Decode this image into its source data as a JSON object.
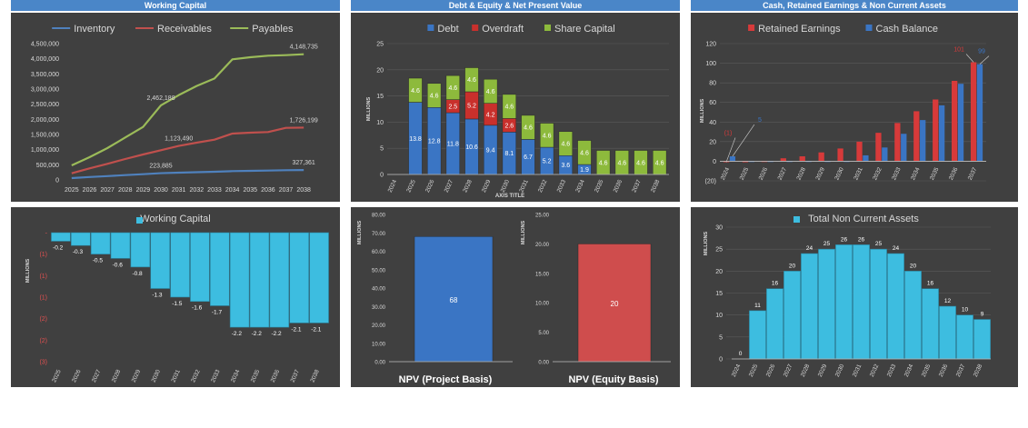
{
  "headers": {
    "working_capital": "Working Capital",
    "debt_equity_npv": "Debt & Equity & Net Present Value",
    "cash_retained": "Cash, Retained Earnings & Non Current Assets"
  },
  "colors": {
    "header_bg": "#4a86c8",
    "panel_bg": "#404040",
    "inventory": "#4f81bd",
    "receivables": "#c0504d",
    "payables": "#9bbb59",
    "debt": "#3a75c4",
    "overdraft": "#c9302c",
    "share_capital": "#8dba3c",
    "working_capital": "#3dbde0",
    "npv_project": "#3a75c4",
    "npv_equity": "#cf4d4d"
  },
  "chart_data": [
    {
      "id": "wc-lines",
      "type": "line",
      "title": "",
      "categories": [
        "2025",
        "2026",
        "2027",
        "2028",
        "2029",
        "2030",
        "2031",
        "2032",
        "2033",
        "2034",
        "2035",
        "2036",
        "2037",
        "2038"
      ],
      "ylim": [
        0,
        4500000
      ],
      "yticks": [
        0,
        500000,
        1000000,
        1500000,
        2000000,
        2500000,
        3000000,
        3500000,
        4000000,
        4500000
      ],
      "ytick_labels": [
        "0",
        "500,000",
        "1,000,000",
        "1,500,000",
        "2,000,000",
        "2,500,000",
        "3,000,000",
        "3,500,000",
        "4,000,000",
        "4,500,000"
      ],
      "legend_position": "top",
      "series": [
        {
          "name": "Inventory",
          "color": "#4f81bd",
          "values": [
            60000,
            95000,
            125000,
            160000,
            190000,
            223885,
            240000,
            255000,
            270000,
            290000,
            300000,
            310000,
            320000,
            327361
          ],
          "labels": [
            {
              "i": 5,
              "text": "223,885"
            },
            {
              "i": 13,
              "text": "327,361"
            }
          ]
        },
        {
          "name": "Receivables",
          "color": "#c0504d",
          "values": [
            220000,
            380000,
            530000,
            690000,
            840000,
            980000,
            1123490,
            1230000,
            1330000,
            1530000,
            1560000,
            1580000,
            1720000,
            1726199
          ],
          "labels": [
            {
              "i": 6,
              "text": "1,123,490"
            },
            {
              "i": 13,
              "text": "1,726,199"
            }
          ]
        },
        {
          "name": "Payables",
          "color": "#9bbb59",
          "values": [
            480000,
            750000,
            1050000,
            1400000,
            1750000,
            2462188,
            2800000,
            3100000,
            3350000,
            3980000,
            4050000,
            4100000,
            4120000,
            4148735
          ],
          "labels": [
            {
              "i": 5,
              "text": "2,462,188"
            },
            {
              "i": 13,
              "text": "4,148,735"
            }
          ]
        }
      ]
    },
    {
      "id": "debt-stack",
      "type": "bar",
      "stacked": true,
      "title": "",
      "ylabel": "MILLIONS",
      "xlabel": "AXIS TITLE",
      "categories": [
        "2024",
        "2025",
        "2026",
        "2027",
        "2028",
        "2029",
        "2030",
        "2031",
        "2032",
        "2033",
        "2034",
        "2035",
        "2036",
        "2037",
        "2038"
      ],
      "ylim": [
        0,
        25
      ],
      "yticks": [
        0,
        5,
        10,
        15,
        20,
        25
      ],
      "ytick_labels": [
        "0",
        "5",
        "10",
        "15",
        "20",
        "25"
      ],
      "legend_position": "top",
      "series": [
        {
          "name": "Debt",
          "color": "#3a75c4",
          "values": [
            0,
            13.8,
            12.8,
            11.8,
            10.6,
            9.4,
            8.1,
            6.7,
            5.2,
            3.6,
            1.9,
            0,
            0,
            0,
            0
          ],
          "labels": [
            "",
            "13.8",
            "12.8",
            "11.8",
            "10.6",
            "9.4",
            "8.1",
            "6.7",
            "5.2",
            "3.6",
            "1.9",
            "",
            "",
            "",
            ""
          ]
        },
        {
          "name": "Overdraft",
          "color": "#c9302c",
          "values": [
            0,
            0,
            0,
            2.5,
            5.2,
            4.2,
            2.6,
            0,
            0,
            0,
            0,
            0,
            0,
            0,
            0
          ],
          "labels": [
            "",
            "",
            "",
            "2.5",
            "5.2",
            "4.2",
            "2.6",
            "",
            "",
            "",
            "",
            "",
            "",
            "",
            ""
          ]
        },
        {
          "name": "Share Capital",
          "color": "#8dba3c",
          "values": [
            0,
            4.6,
            4.6,
            4.6,
            4.6,
            4.6,
            4.6,
            4.6,
            4.6,
            4.6,
            4.6,
            4.6,
            4.6,
            4.6,
            4.6
          ],
          "labels": [
            "",
            "4.6",
            "4.6",
            "4.6",
            "4.6",
            "4.6",
            "4.6",
            "4.6",
            "4.6",
            "4.6",
            "4.6",
            "4.6",
            "4.6",
            "4.6",
            "4.6"
          ]
        }
      ]
    },
    {
      "id": "cash-retained",
      "type": "bar",
      "title": "",
      "ylabel": "MILLIONS",
      "categories": [
        "2024",
        "2025",
        "2026",
        "2027",
        "2028",
        "2029",
        "2030",
        "2031",
        "2032",
        "2033",
        "2034",
        "2035",
        "2036",
        "2037"
      ],
      "ylim": [
        -20,
        120
      ],
      "yticks": [
        -20,
        0,
        20,
        40,
        60,
        80,
        100,
        120
      ],
      "ytick_labels": [
        "(20)",
        "0",
        "20",
        "40",
        "60",
        "80",
        "100",
        "120"
      ],
      "legend_position": "top",
      "series": [
        {
          "name": "Retained Earnings",
          "color": "#d73a3a",
          "values": [
            -1,
            -1,
            0,
            3,
            5,
            9,
            13,
            20,
            29,
            39,
            51,
            63,
            82,
            101
          ]
        },
        {
          "name": "Cash Balance",
          "color": "#3a75c4",
          "values": [
            5,
            0,
            0,
            0,
            0,
            0,
            0,
            6,
            14,
            28,
            42,
            57,
            79,
            99
          ]
        }
      ],
      "callouts": [
        {
          "series": 0,
          "i": 0,
          "text": "(1)",
          "color": "#d73a3a"
        },
        {
          "series": 1,
          "i": 0,
          "text": "5",
          "color": "#3a75c4"
        },
        {
          "series": 0,
          "i": 13,
          "text": "101",
          "color": "#d73a3a"
        },
        {
          "series": 1,
          "i": 13,
          "text": "99",
          "color": "#3a75c4"
        }
      ]
    },
    {
      "id": "working-capital",
      "type": "bar",
      "title": "Working Capital",
      "ylabel": "MILLIONS",
      "categories": [
        "2025",
        "2026",
        "2027",
        "2028",
        "2029",
        "2030",
        "2031",
        "2032",
        "2033",
        "2034",
        "2035",
        "2036",
        "2037",
        "2038"
      ],
      "ylim": [
        -3,
        0
      ],
      "yticks": [
        0,
        -0.5,
        -1,
        -1.5,
        -2,
        -2.5,
        -3
      ],
      "ytick_labels": [
        "-",
        "(1)",
        "(1)",
        "(1)",
        "(2)",
        "(2)",
        "(3)"
      ],
      "legend_position": "top",
      "series": [
        {
          "name": "Working Capital",
          "color": "#3dbde0",
          "values": [
            -0.2,
            -0.3,
            -0.5,
            -0.6,
            -0.8,
            -1.3,
            -1.5,
            -1.6,
            -1.7,
            -2.2,
            -2.2,
            -2.2,
            -2.1,
            -2.1
          ],
          "labels": [
            "-0.2",
            "-0.3",
            "-0.5",
            "-0.6",
            "-0.8",
            "-1.3",
            "-1.5",
            "-1.6",
            "-1.7",
            "-2.2",
            "-2.2",
            "-2.2",
            "-2.1",
            "-2.1"
          ]
        }
      ]
    },
    {
      "id": "npv-project",
      "type": "bar",
      "title": "",
      "ylabel": "MILLIONS",
      "categories": [
        "NPV (Project Basis)"
      ],
      "ylim": [
        0,
        80
      ],
      "yticks": [
        0,
        10,
        20,
        30,
        40,
        50,
        60,
        70,
        80
      ],
      "ytick_labels": [
        "0.00",
        "10.00",
        "20.00",
        "30.00",
        "40.00",
        "50.00",
        "60.00",
        "70.00",
        "80.00"
      ],
      "series": [
        {
          "color": "#3a75c4",
          "values": [
            68
          ],
          "labels": [
            "68"
          ]
        }
      ]
    },
    {
      "id": "npv-equity",
      "type": "bar",
      "title": "",
      "ylabel": "MILLIONS",
      "categories": [
        "NPV (Equity Basis)"
      ],
      "ylim": [
        0,
        25
      ],
      "yticks": [
        0,
        5,
        10,
        15,
        20,
        25
      ],
      "ytick_labels": [
        "0.00",
        "5.00",
        "10.00",
        "15.00",
        "20.00",
        "25.00"
      ],
      "series": [
        {
          "color": "#cf4d4d",
          "values": [
            20
          ],
          "labels": [
            "20"
          ]
        }
      ]
    },
    {
      "id": "nca",
      "type": "bar",
      "title": "Total Non Current Assets",
      "ylabel": "MILLIONS",
      "categories": [
        "2024",
        "2025",
        "2026",
        "2027",
        "2028",
        "2029",
        "2030",
        "2031",
        "2032",
        "2033",
        "2034",
        "2035",
        "2036",
        "2037",
        "2038"
      ],
      "ylim": [
        0,
        30
      ],
      "yticks": [
        0,
        5,
        10,
        15,
        20,
        25,
        30
      ],
      "ytick_labels": [
        "0",
        "5",
        "10",
        "15",
        "20",
        "25",
        "30"
      ],
      "legend_position": "top",
      "series": [
        {
          "name": "Total Non Current Assets",
          "color": "#3dbde0",
          "values": [
            0,
            11,
            16,
            20,
            24,
            25,
            26,
            26,
            25,
            24,
            20,
            16,
            12,
            10,
            9
          ],
          "labels": [
            "0",
            "11",
            "16",
            "20",
            "24",
            "25",
            "26",
            "26",
            "25",
            "24",
            "20",
            "16",
            "12",
            "10",
            "9"
          ]
        }
      ]
    }
  ]
}
